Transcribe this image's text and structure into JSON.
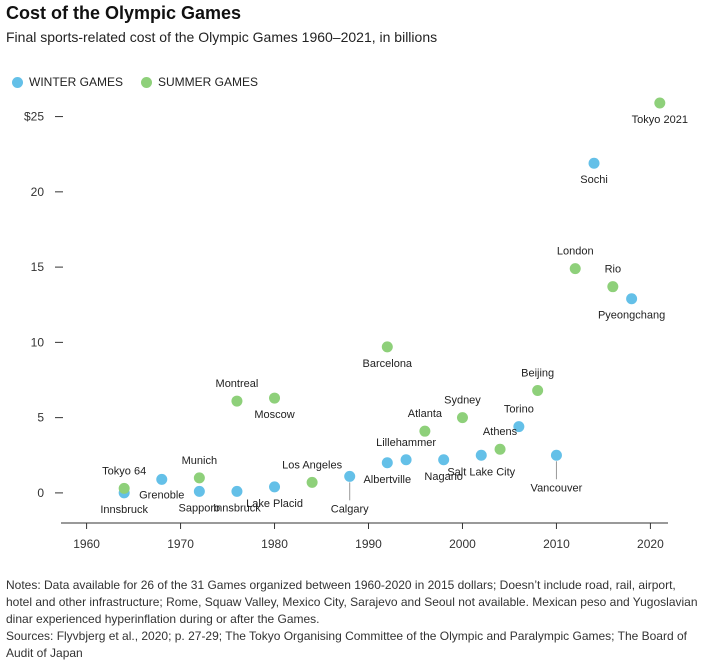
{
  "title": "Cost of the Olympic Games",
  "subtitle": "Final sports-related cost of the Olympic Games 1960–2021, in billions",
  "legend": {
    "winter": {
      "label": "WINTER GAMES",
      "color": "#64c0e8"
    },
    "summer": {
      "label": "SUMMER GAMES",
      "color": "#8ed07a"
    }
  },
  "notes": "Notes: Data available for 26 of the 31 Games organized between 1960-2020 in 2015 dollars; Doesn’t include road, rail, airport, hotel and other infrastructure;  Rome, Squaw Valley, Mexico City, Sarajevo and Seoul not available. Mexican peso and Yugoslavian dinar experienced hyperinflation during or after the Games.",
  "sources": "Sources: Flyvbjerg et al., 2020; p. 27-29; The Tokyo Organising Committee of the Olympic and Paralympic Games; The Board of Audit of Japan",
  "chart_data": {
    "type": "scatter",
    "title": "Cost of the Olympic Games",
    "subtitle": "Final sports-related cost of the Olympic Games 1960–2021, in billions",
    "xlabel": "",
    "ylabel": "",
    "xlim": [
      1956,
      2024
    ],
    "ylim": [
      -2,
      26.5
    ],
    "x_ticks": [
      1960,
      1970,
      1980,
      1990,
      2000,
      2010,
      2020
    ],
    "y_ticks": [
      0,
      5,
      10,
      15,
      20,
      25
    ],
    "y_tick_labels": [
      "0",
      "5",
      "10",
      "15",
      "20",
      "$25"
    ],
    "grid": false,
    "legend_position": "top-left",
    "series": [
      {
        "name": "WINTER GAMES",
        "color": "#64c0e8",
        "points": [
          {
            "x": 1964,
            "y": 0.0,
            "label": "Innsbruck",
            "label_pos": "below"
          },
          {
            "x": 1968,
            "y": 0.9,
            "label": "Grenoble",
            "label_pos": "below-left"
          },
          {
            "x": 1972,
            "y": 0.1,
            "label": "Sapporo",
            "label_pos": "below"
          },
          {
            "x": 1976,
            "y": 0.1,
            "label": "Innsbruck",
            "label_pos": "below"
          },
          {
            "x": 1980,
            "y": 0.4,
            "label": "Lake Placid",
            "label_pos": "below"
          },
          {
            "x": 1988,
            "y": 1.1,
            "label": "Calgary",
            "label_pos": "below-leader"
          },
          {
            "x": 1992,
            "y": 2.0,
            "label": "Albertville",
            "label_pos": "below"
          },
          {
            "x": 1994,
            "y": 2.2,
            "label": "Lillehammer",
            "label_pos": "above"
          },
          {
            "x": 1998,
            "y": 2.2,
            "label": "Nagano",
            "label_pos": "below"
          },
          {
            "x": 2002,
            "y": 2.5,
            "label": "Salt Lake City",
            "label_pos": "below"
          },
          {
            "x": 2006,
            "y": 4.4,
            "label": "Torino",
            "label_pos": "above"
          },
          {
            "x": 2010,
            "y": 2.5,
            "label": "Vancouver",
            "label_pos": "below-leader"
          },
          {
            "x": 2014,
            "y": 21.9,
            "label": "Sochi",
            "label_pos": "below"
          },
          {
            "x": 2018,
            "y": 12.9,
            "label": "Pyeongchang",
            "label_pos": "below"
          }
        ]
      },
      {
        "name": "SUMMER GAMES",
        "color": "#8ed07a",
        "points": [
          {
            "x": 1964,
            "y": 0.3,
            "label": "Tokyo 64",
            "label_pos": "above"
          },
          {
            "x": 1972,
            "y": 1.0,
            "label": "Munich",
            "label_pos": "above"
          },
          {
            "x": 1976,
            "y": 6.1,
            "label": "Montreal",
            "label_pos": "above"
          },
          {
            "x": 1980,
            "y": 6.3,
            "label": "Moscow",
            "label_pos": "below"
          },
          {
            "x": 1984,
            "y": 0.7,
            "label": "Los Angeles",
            "label_pos": "above"
          },
          {
            "x": 1992,
            "y": 9.7,
            "label": "Barcelona",
            "label_pos": "below"
          },
          {
            "x": 1996,
            "y": 4.1,
            "label": "Atlanta",
            "label_pos": "above"
          },
          {
            "x": 2000,
            "y": 5.0,
            "label": "Sydney",
            "label_pos": "above"
          },
          {
            "x": 2004,
            "y": 2.9,
            "label": "Athens",
            "label_pos": "above"
          },
          {
            "x": 2008,
            "y": 6.8,
            "label": "Beijing",
            "label_pos": "above"
          },
          {
            "x": 2012,
            "y": 14.9,
            "label": "London",
            "label_pos": "above"
          },
          {
            "x": 2016,
            "y": 13.7,
            "label": "Rio",
            "label_pos": "above"
          },
          {
            "x": 2021,
            "y": 25.9,
            "label": "Tokyo 2021",
            "label_pos": "below"
          }
        ]
      }
    ]
  }
}
